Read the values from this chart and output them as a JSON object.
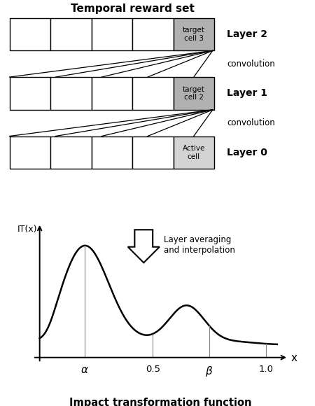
{
  "title_top": "Temporal reward set",
  "title_bottom": "Impact transformation function",
  "layer_labels": [
    "Layer 2",
    "Layer 1",
    "Layer 0"
  ],
  "convolution_labels": [
    "convolution",
    "convolution"
  ],
  "cell_labels_gray": [
    "target\ncell 3",
    "target\ncell 2"
  ],
  "cell_label_light": "Active\ncell",
  "num_white_cells": 4,
  "gray_color": "#b0b0b0",
  "light_gray_color": "#d3d3d3",
  "arrow_annotation": "Layer averaging\nand interpolation",
  "xlabel": "x",
  "ylabel": "IT(x)",
  "background_color": "#ffffff"
}
